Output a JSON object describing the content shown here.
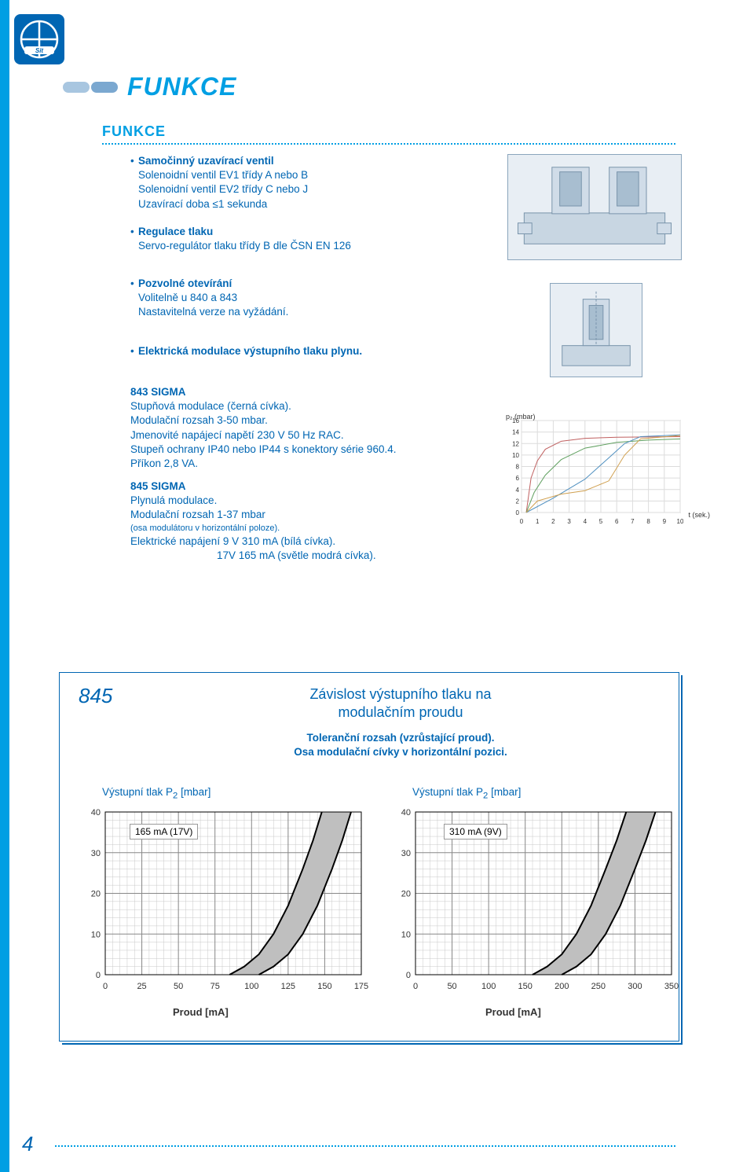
{
  "colors": {
    "accent_cyan": "#009fe3",
    "accent_blue": "#0066b3",
    "text_blue": "#0066b3",
    "grid": "#c8c8c8",
    "grid_bold": "#888888",
    "diagram_bg": "#e8eef4",
    "diagram_line": "#8aa5bc"
  },
  "header": {
    "section_title": "FUNKCE",
    "sub_title": "FUNKCE"
  },
  "block1": {
    "lead": "Samočinný uzavírací ventil",
    "lines": [
      "Solenoidní ventil EV1 třídy A nebo B",
      "Solenoidní ventil EV2 třídy C nebo J",
      "Uzavírací doba ≤1 sekunda"
    ]
  },
  "block2": {
    "lead": "Regulace tlaku",
    "lines": [
      "Servo-regulátor tlaku třídy B dle ČSN EN 126"
    ]
  },
  "block3": {
    "lead": "Pozvolné otevírání",
    "lines": [
      "Volitelně u 840 a 843",
      "Nastavitelná verze na vyžádání."
    ]
  },
  "block4": {
    "lead": "Elektrická modulace výstupního tlaku plynu."
  },
  "block5": {
    "title": "843 SIGMA",
    "lines": [
      "Stupňová modulace (černá cívka).",
      "Modulační rozsah 3-50 mbar.",
      "Jmenovité napájecí napětí 230 V 50 Hz RAC.",
      "Stupeň ochrany IP40 nebo IP44 s konektory série 960.4.",
      "Příkon 2,8 VA."
    ]
  },
  "block6": {
    "title": "845 SIGMA",
    "lines_main": [
      "Plynulá modulace.",
      "Modulační rozsah 1-37 mbar"
    ],
    "rozsah_note": "(osa modulátoru v horizontální poloze).",
    "lines_tail": [
      "Elektrické napájení 9 V 310 mA (bílá cívka).",
      "17V 165 mA (světle modrá cívka)."
    ]
  },
  "small_chart": {
    "type": "line",
    "ylabel": "p₂ (mbar)",
    "xlabel": "t (sek.)",
    "xlim": [
      0,
      10
    ],
    "ylim": [
      0,
      16
    ],
    "xticks": [
      0,
      1,
      2,
      3,
      4,
      5,
      6,
      7,
      8,
      9,
      10
    ],
    "yticks": [
      0,
      2,
      4,
      6,
      8,
      10,
      12,
      14,
      16
    ],
    "background_color": "#ffffff",
    "grid_color": "#dcdcdc",
    "series": [
      {
        "name": "curve_red",
        "color": "#c06060",
        "width": 1,
        "points": [
          [
            0.3,
            0
          ],
          [
            0.6,
            6
          ],
          [
            1,
            9
          ],
          [
            1.5,
            11
          ],
          [
            2.5,
            12.4
          ],
          [
            4,
            12.9
          ],
          [
            6,
            13.1
          ],
          [
            10,
            13.2
          ]
        ]
      },
      {
        "name": "curve_green",
        "color": "#60a060",
        "width": 1,
        "points": [
          [
            0.3,
            0
          ],
          [
            0.8,
            3.5
          ],
          [
            1.5,
            6.5
          ],
          [
            2.5,
            9.2
          ],
          [
            4,
            11.2
          ],
          [
            6,
            12.2
          ],
          [
            8,
            12.6
          ],
          [
            10,
            12.8
          ]
        ]
      },
      {
        "name": "curve_blue",
        "color": "#5090c0",
        "width": 1,
        "points": [
          [
            0.3,
            0
          ],
          [
            2,
            2.5
          ],
          [
            4,
            5.8
          ],
          [
            5.5,
            9.5
          ],
          [
            6.5,
            12
          ],
          [
            7.5,
            13.2
          ],
          [
            10,
            13.5
          ]
        ]
      },
      {
        "name": "curve_orange",
        "color": "#d0a050",
        "width": 1,
        "points": [
          [
            0.3,
            0
          ],
          [
            1,
            2
          ],
          [
            2.5,
            3.2
          ],
          [
            4,
            3.8
          ],
          [
            5.5,
            5.5
          ],
          [
            6.5,
            10
          ],
          [
            7.5,
            12.8
          ],
          [
            10,
            13.4
          ]
        ]
      }
    ]
  },
  "panel": {
    "number": "845",
    "title_l1": "Závislost výstupního tlaku na",
    "title_l2": "modulačním proudu",
    "sub_l1": "Toleranční rozsah (vzrůstající proud).",
    "sub_l2": "Osa modulační cívky v horizontální pozici."
  },
  "chart_left": {
    "type": "area_band",
    "axis_title": "Výstupní tlak P₂ [mbar]",
    "x_label": "Proud [mA]",
    "legend": "165 mA (17V)",
    "xlim": [
      0,
      175
    ],
    "ylim": [
      0,
      40
    ],
    "xticks": [
      0,
      25,
      50,
      75,
      100,
      125,
      150,
      175
    ],
    "yticks": [
      0,
      10,
      20,
      30,
      40
    ],
    "grid_minor_x": 5,
    "grid_minor_y": 2,
    "grid_color": "#c8c8c8",
    "grid_bold_color": "#888888",
    "band_color": "#bfbfbf",
    "band_stroke": "#000000",
    "band_stroke_width": 2,
    "band_upper": [
      [
        85,
        0
      ],
      [
        95,
        2
      ],
      [
        105,
        5
      ],
      [
        115,
        10
      ],
      [
        125,
        17
      ],
      [
        135,
        26
      ],
      [
        142,
        33
      ],
      [
        148,
        40
      ]
    ],
    "band_lower": [
      [
        105,
        0
      ],
      [
        115,
        2
      ],
      [
        125,
        5
      ],
      [
        135,
        10
      ],
      [
        145,
        17
      ],
      [
        155,
        26
      ],
      [
        162,
        33
      ],
      [
        168,
        40
      ]
    ]
  },
  "chart_right": {
    "type": "area_band",
    "axis_title": "Výstupní tlak P₂ [mbar]",
    "x_label": "Proud [mA]",
    "legend": "310 mA (9V)",
    "xlim": [
      0,
      350
    ],
    "ylim": [
      0,
      40
    ],
    "xticks": [
      0,
      50,
      100,
      150,
      200,
      250,
      300,
      350
    ],
    "yticks": [
      0,
      10,
      20,
      30,
      40
    ],
    "grid_minor_x": 10,
    "grid_minor_y": 2,
    "grid_color": "#c8c8c8",
    "grid_bold_color": "#888888",
    "band_color": "#bfbfbf",
    "band_stroke": "#000000",
    "band_stroke_width": 2,
    "band_upper": [
      [
        160,
        0
      ],
      [
        180,
        2
      ],
      [
        200,
        5
      ],
      [
        220,
        10
      ],
      [
        240,
        17
      ],
      [
        260,
        26
      ],
      [
        275,
        33
      ],
      [
        288,
        40
      ]
    ],
    "band_lower": [
      [
        200,
        0
      ],
      [
        220,
        2
      ],
      [
        240,
        5
      ],
      [
        260,
        10
      ],
      [
        280,
        17
      ],
      [
        300,
        26
      ],
      [
        315,
        33
      ],
      [
        328,
        40
      ]
    ]
  },
  "page_number": "4"
}
